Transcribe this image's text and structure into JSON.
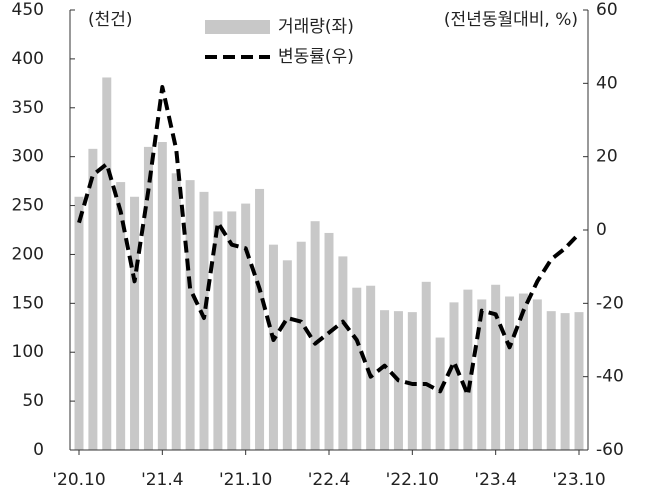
{
  "chart_data": {
    "type": "bar-line",
    "left_axis_label": "(천건)",
    "right_axis_label": "(전년동월대비, %)",
    "categories": [
      "'20.10",
      null,
      null,
      null,
      null,
      null,
      "'21.4",
      null,
      null,
      null,
      null,
      null,
      "'21.10",
      null,
      null,
      null,
      null,
      null,
      "'22.4",
      null,
      null,
      null,
      null,
      null,
      "'22.10",
      null,
      null,
      null,
      null,
      null,
      "'23.4",
      null,
      null,
      null,
      null,
      null,
      "'23.10"
    ],
    "series": [
      {
        "name": "거래량(좌)",
        "color": "#c8c8c8",
        "type": "bar",
        "values": [
          259,
          308,
          381,
          274,
          259,
          310,
          315,
          283,
          276,
          264,
          244,
          244,
          252,
          267,
          210,
          194,
          213,
          234,
          222,
          198,
          166,
          168,
          143,
          142,
          141,
          172,
          115,
          151,
          164,
          154,
          169,
          157,
          160,
          154,
          142,
          140,
          141
        ]
      },
      {
        "name": "변동률(우)",
        "color": "#000000",
        "type": "line",
        "axis": "y2",
        "values": [
          2,
          15,
          18,
          5,
          -14,
          11,
          39,
          22,
          -16,
          -24,
          2,
          -4,
          -5,
          -16,
          -30,
          -24,
          -25,
          -31,
          -28,
          -25,
          -30,
          -40,
          -37,
          -41,
          -42,
          -42,
          -44,
          -36,
          -45,
          -22,
          -23,
          -32,
          -22,
          -14,
          -8,
          -5,
          -1
        ]
      }
    ],
    "ylim": [
      0,
      450
    ],
    "yticks": [
      0,
      50,
      100,
      150,
      200,
      250,
      300,
      350,
      400,
      450
    ],
    "y2lim": [
      -60,
      60
    ],
    "y2ticks": [
      -60,
      -40,
      -20,
      0,
      20,
      40,
      60
    ]
  }
}
